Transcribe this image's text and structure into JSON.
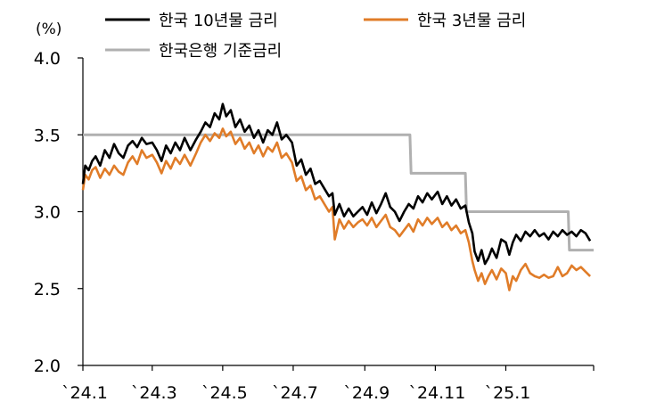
{
  "chart_data": {
    "type": "line",
    "unit_label": "(%)",
    "ylim": [
      2.0,
      4.0
    ],
    "yticks": [
      "4.0",
      "3.5",
      "3.0",
      "2.5",
      "2.0"
    ],
    "yticks_values": [
      4.0,
      3.5,
      3.0,
      2.5,
      2.0
    ],
    "xticks": [
      "`24.1",
      "`24.3",
      "`24.5",
      "`24.7",
      "`24.9",
      "`24.11",
      "`25.1"
    ],
    "xticks_values": [
      "2024-01-01",
      "2024-03-01",
      "2024-05-01",
      "2024-07-01",
      "2024-09-01",
      "2024-11-01",
      "2025-01-01"
    ],
    "xlim": [
      "2024-01-01",
      "2025-03-18"
    ],
    "grid": false,
    "legend_position": "top",
    "series": [
      {
        "name": "한국 10년물 금리",
        "color": "#000000",
        "points": [
          [
            "2024-01-01",
            3.18
          ],
          [
            "2024-01-03",
            3.3
          ],
          [
            "2024-01-06",
            3.27
          ],
          [
            "2024-01-09",
            3.33
          ],
          [
            "2024-01-12",
            3.36
          ],
          [
            "2024-01-16",
            3.3
          ],
          [
            "2024-01-20",
            3.4
          ],
          [
            "2024-01-24",
            3.35
          ],
          [
            "2024-01-28",
            3.44
          ],
          [
            "2024-02-01",
            3.38
          ],
          [
            "2024-02-05",
            3.35
          ],
          [
            "2024-02-09",
            3.43
          ],
          [
            "2024-02-13",
            3.46
          ],
          [
            "2024-02-17",
            3.42
          ],
          [
            "2024-02-21",
            3.48
          ],
          [
            "2024-02-25",
            3.44
          ],
          [
            "2024-03-01",
            3.45
          ],
          [
            "2024-03-05",
            3.4
          ],
          [
            "2024-03-09",
            3.33
          ],
          [
            "2024-03-13",
            3.43
          ],
          [
            "2024-03-17",
            3.38
          ],
          [
            "2024-03-21",
            3.45
          ],
          [
            "2024-03-25",
            3.4
          ],
          [
            "2024-03-29",
            3.48
          ],
          [
            "2024-04-03",
            3.4
          ],
          [
            "2024-04-08",
            3.47
          ],
          [
            "2024-04-12",
            3.52
          ],
          [
            "2024-04-16",
            3.58
          ],
          [
            "2024-04-20",
            3.55
          ],
          [
            "2024-04-24",
            3.64
          ],
          [
            "2024-04-28",
            3.6
          ],
          [
            "2024-05-01",
            3.7
          ],
          [
            "2024-05-04",
            3.62
          ],
          [
            "2024-05-08",
            3.66
          ],
          [
            "2024-05-12",
            3.55
          ],
          [
            "2024-05-16",
            3.6
          ],
          [
            "2024-05-20",
            3.52
          ],
          [
            "2024-05-24",
            3.56
          ],
          [
            "2024-05-28",
            3.48
          ],
          [
            "2024-06-01",
            3.53
          ],
          [
            "2024-06-05",
            3.45
          ],
          [
            "2024-06-09",
            3.53
          ],
          [
            "2024-06-13",
            3.5
          ],
          [
            "2024-06-17",
            3.58
          ],
          [
            "2024-06-21",
            3.47
          ],
          [
            "2024-06-25",
            3.5
          ],
          [
            "2024-06-30",
            3.45
          ],
          [
            "2024-07-04",
            3.3
          ],
          [
            "2024-07-08",
            3.34
          ],
          [
            "2024-07-12",
            3.24
          ],
          [
            "2024-07-16",
            3.28
          ],
          [
            "2024-07-20",
            3.18
          ],
          [
            "2024-07-24",
            3.2
          ],
          [
            "2024-07-28",
            3.15
          ],
          [
            "2024-08-01",
            3.1
          ],
          [
            "2024-08-04",
            3.12
          ],
          [
            "2024-08-06",
            2.98
          ],
          [
            "2024-08-10",
            3.05
          ],
          [
            "2024-08-14",
            2.97
          ],
          [
            "2024-08-18",
            3.02
          ],
          [
            "2024-08-22",
            2.97
          ],
          [
            "2024-08-26",
            3.0
          ],
          [
            "2024-08-30",
            3.03
          ],
          [
            "2024-09-03",
            2.98
          ],
          [
            "2024-09-07",
            3.06
          ],
          [
            "2024-09-11",
            2.99
          ],
          [
            "2024-09-15",
            3.05
          ],
          [
            "2024-09-19",
            3.12
          ],
          [
            "2024-09-23",
            3.03
          ],
          [
            "2024-09-27",
            3.0
          ],
          [
            "2024-10-01",
            2.94
          ],
          [
            "2024-10-05",
            3.0
          ],
          [
            "2024-10-09",
            3.05
          ],
          [
            "2024-10-13",
            3.02
          ],
          [
            "2024-10-17",
            3.1
          ],
          [
            "2024-10-21",
            3.06
          ],
          [
            "2024-10-25",
            3.12
          ],
          [
            "2024-10-29",
            3.08
          ],
          [
            "2024-11-03",
            3.13
          ],
          [
            "2024-11-07",
            3.05
          ],
          [
            "2024-11-11",
            3.1
          ],
          [
            "2024-11-15",
            3.04
          ],
          [
            "2024-11-19",
            3.08
          ],
          [
            "2024-11-23",
            3.02
          ],
          [
            "2024-11-27",
            3.04
          ],
          [
            "2024-11-30",
            2.93
          ],
          [
            "2024-12-03",
            2.86
          ],
          [
            "2024-12-05",
            2.74
          ],
          [
            "2024-12-08",
            2.68
          ],
          [
            "2024-12-11",
            2.75
          ],
          [
            "2024-12-14",
            2.66
          ],
          [
            "2024-12-17",
            2.7
          ],
          [
            "2024-12-20",
            2.76
          ],
          [
            "2024-12-24",
            2.7
          ],
          [
            "2024-12-28",
            2.82
          ],
          [
            "2025-01-01",
            2.8
          ],
          [
            "2025-01-04",
            2.72
          ],
          [
            "2025-01-07",
            2.8
          ],
          [
            "2025-01-10",
            2.85
          ],
          [
            "2025-01-14",
            2.81
          ],
          [
            "2025-01-18",
            2.87
          ],
          [
            "2025-01-22",
            2.84
          ],
          [
            "2025-01-26",
            2.88
          ],
          [
            "2025-01-30",
            2.84
          ],
          [
            "2025-02-03",
            2.86
          ],
          [
            "2025-02-07",
            2.82
          ],
          [
            "2025-02-11",
            2.87
          ],
          [
            "2025-02-15",
            2.84
          ],
          [
            "2025-02-19",
            2.88
          ],
          [
            "2025-02-23",
            2.85
          ],
          [
            "2025-02-27",
            2.87
          ],
          [
            "2025-03-03",
            2.84
          ],
          [
            "2025-03-07",
            2.88
          ],
          [
            "2025-03-11",
            2.86
          ],
          [
            "2025-03-15",
            2.81
          ]
        ]
      },
      {
        "name": "한국 3년물 금리",
        "color": "#e07c28",
        "points": [
          [
            "2024-01-01",
            3.14
          ],
          [
            "2024-01-03",
            3.24
          ],
          [
            "2024-01-06",
            3.21
          ],
          [
            "2024-01-09",
            3.27
          ],
          [
            "2024-01-12",
            3.29
          ],
          [
            "2024-01-16",
            3.22
          ],
          [
            "2024-01-20",
            3.28
          ],
          [
            "2024-01-24",
            3.24
          ],
          [
            "2024-01-28",
            3.3
          ],
          [
            "2024-02-01",
            3.26
          ],
          [
            "2024-02-05",
            3.24
          ],
          [
            "2024-02-09",
            3.32
          ],
          [
            "2024-02-13",
            3.36
          ],
          [
            "2024-02-17",
            3.31
          ],
          [
            "2024-02-21",
            3.4
          ],
          [
            "2024-02-25",
            3.35
          ],
          [
            "2024-03-01",
            3.37
          ],
          [
            "2024-03-05",
            3.32
          ],
          [
            "2024-03-09",
            3.25
          ],
          [
            "2024-03-13",
            3.33
          ],
          [
            "2024-03-17",
            3.28
          ],
          [
            "2024-03-21",
            3.35
          ],
          [
            "2024-03-25",
            3.31
          ],
          [
            "2024-03-29",
            3.37
          ],
          [
            "2024-04-03",
            3.3
          ],
          [
            "2024-04-08",
            3.38
          ],
          [
            "2024-04-12",
            3.45
          ],
          [
            "2024-04-16",
            3.5
          ],
          [
            "2024-04-20",
            3.46
          ],
          [
            "2024-04-24",
            3.51
          ],
          [
            "2024-04-28",
            3.48
          ],
          [
            "2024-05-01",
            3.54
          ],
          [
            "2024-05-04",
            3.49
          ],
          [
            "2024-05-08",
            3.52
          ],
          [
            "2024-05-12",
            3.44
          ],
          [
            "2024-05-16",
            3.48
          ],
          [
            "2024-05-20",
            3.41
          ],
          [
            "2024-05-24",
            3.45
          ],
          [
            "2024-05-28",
            3.38
          ],
          [
            "2024-06-01",
            3.43
          ],
          [
            "2024-06-05",
            3.36
          ],
          [
            "2024-06-09",
            3.42
          ],
          [
            "2024-06-13",
            3.39
          ],
          [
            "2024-06-17",
            3.45
          ],
          [
            "2024-06-21",
            3.35
          ],
          [
            "2024-06-25",
            3.38
          ],
          [
            "2024-06-30",
            3.32
          ],
          [
            "2024-07-04",
            3.2
          ],
          [
            "2024-07-08",
            3.23
          ],
          [
            "2024-07-12",
            3.14
          ],
          [
            "2024-07-16",
            3.17
          ],
          [
            "2024-07-20",
            3.08
          ],
          [
            "2024-07-24",
            3.1
          ],
          [
            "2024-07-28",
            3.05
          ],
          [
            "2024-08-01",
            3.0
          ],
          [
            "2024-08-04",
            3.03
          ],
          [
            "2024-08-06",
            2.82
          ],
          [
            "2024-08-10",
            2.95
          ],
          [
            "2024-08-14",
            2.89
          ],
          [
            "2024-08-18",
            2.94
          ],
          [
            "2024-08-22",
            2.9
          ],
          [
            "2024-08-26",
            2.93
          ],
          [
            "2024-08-30",
            2.95
          ],
          [
            "2024-09-03",
            2.91
          ],
          [
            "2024-09-07",
            2.96
          ],
          [
            "2024-09-11",
            2.9
          ],
          [
            "2024-09-15",
            2.94
          ],
          [
            "2024-09-19",
            2.98
          ],
          [
            "2024-09-23",
            2.9
          ],
          [
            "2024-09-27",
            2.88
          ],
          [
            "2024-10-01",
            2.84
          ],
          [
            "2024-10-05",
            2.88
          ],
          [
            "2024-10-09",
            2.92
          ],
          [
            "2024-10-13",
            2.87
          ],
          [
            "2024-10-17",
            2.95
          ],
          [
            "2024-10-21",
            2.91
          ],
          [
            "2024-10-25",
            2.96
          ],
          [
            "2024-10-29",
            2.92
          ],
          [
            "2024-11-03",
            2.96
          ],
          [
            "2024-11-07",
            2.9
          ],
          [
            "2024-11-11",
            2.93
          ],
          [
            "2024-11-15",
            2.88
          ],
          [
            "2024-11-19",
            2.91
          ],
          [
            "2024-11-23",
            2.86
          ],
          [
            "2024-11-27",
            2.88
          ],
          [
            "2024-11-30",
            2.8
          ],
          [
            "2024-12-03",
            2.68
          ],
          [
            "2024-12-05",
            2.62
          ],
          [
            "2024-12-08",
            2.55
          ],
          [
            "2024-12-11",
            2.6
          ],
          [
            "2024-12-14",
            2.53
          ],
          [
            "2024-12-17",
            2.58
          ],
          [
            "2024-12-20",
            2.62
          ],
          [
            "2024-12-24",
            2.56
          ],
          [
            "2024-12-28",
            2.63
          ],
          [
            "2025-01-01",
            2.6
          ],
          [
            "2025-01-04",
            2.49
          ],
          [
            "2025-01-07",
            2.58
          ],
          [
            "2025-01-10",
            2.55
          ],
          [
            "2025-01-14",
            2.62
          ],
          [
            "2025-01-18",
            2.66
          ],
          [
            "2025-01-22",
            2.6
          ],
          [
            "2025-01-26",
            2.58
          ],
          [
            "2025-01-30",
            2.57
          ],
          [
            "2025-02-03",
            2.59
          ],
          [
            "2025-02-07",
            2.57
          ],
          [
            "2025-02-11",
            2.58
          ],
          [
            "2025-02-15",
            2.64
          ],
          [
            "2025-02-19",
            2.58
          ],
          [
            "2025-02-23",
            2.6
          ],
          [
            "2025-02-27",
            2.65
          ],
          [
            "2025-03-03",
            2.62
          ],
          [
            "2025-03-07",
            2.64
          ],
          [
            "2025-03-11",
            2.61
          ],
          [
            "2025-03-15",
            2.58
          ]
        ]
      },
      {
        "name": "한국은행 기준금리",
        "color": "#b0b0b0",
        "points": [
          [
            "2024-01-01",
            3.5
          ],
          [
            "2024-10-10",
            3.5
          ],
          [
            "2024-10-11",
            3.25
          ],
          [
            "2024-11-27",
            3.25
          ],
          [
            "2024-11-28",
            3.0
          ],
          [
            "2025-02-24",
            3.0
          ],
          [
            "2025-02-25",
            2.75
          ],
          [
            "2025-03-18",
            2.75
          ]
        ]
      }
    ]
  }
}
